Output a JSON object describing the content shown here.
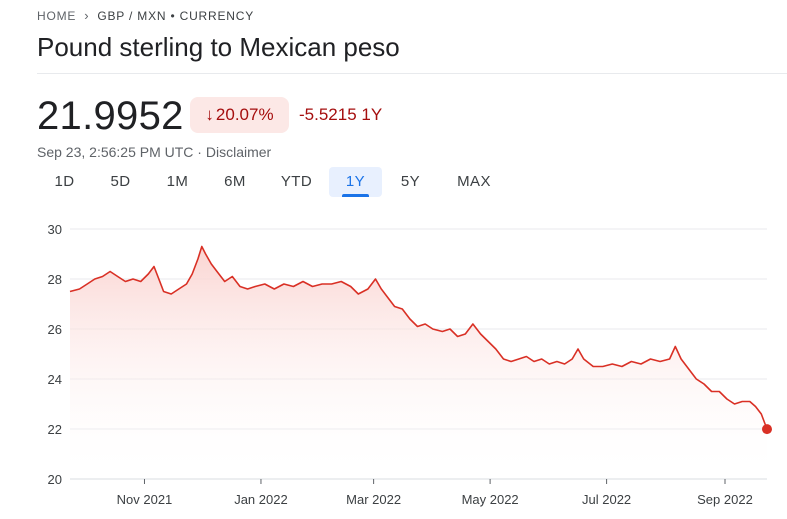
{
  "breadcrumb": {
    "home": "HOME",
    "current": "GBP / MXN • CURRENCY"
  },
  "title": "Pound sterling to Mexican peso",
  "quote": {
    "price": "21.9952",
    "change_percent": "20.07%",
    "change_abs": "-5.5215 1Y",
    "timestamp": "Sep 23, 2:56:25 PM UTC",
    "separator": " · ",
    "disclaimer": "Disclaimer"
  },
  "range_tabs": [
    {
      "label": "1D",
      "active": false
    },
    {
      "label": "5D",
      "active": false
    },
    {
      "label": "1M",
      "active": false
    },
    {
      "label": "6M",
      "active": false
    },
    {
      "label": "YTD",
      "active": false
    },
    {
      "label": "1Y",
      "active": true
    },
    {
      "label": "5Y",
      "active": false
    },
    {
      "label": "MAX",
      "active": false
    }
  ],
  "colors": {
    "line": "#d93025",
    "fill_top": "#fad2cf",
    "negative_badge_bg": "#fce8e6",
    "negative_text": "#a50e0e",
    "active_tab": "#1a73e8",
    "grid": "#e8eaed"
  },
  "icons": {
    "breadcrumb_separator": "chevron-right-icon",
    "change_arrow": "arrow-down-icon"
  },
  "chart_data": {
    "type": "area",
    "title": "",
    "xlabel": "",
    "ylabel": "",
    "ylim": [
      20,
      30
    ],
    "yticks": [
      20,
      22,
      24,
      26,
      28,
      30
    ],
    "xticks": [
      "Nov 2021",
      "Jan 2022",
      "Mar 2022",
      "May 2022",
      "Jul 2022",
      "Sep 2022"
    ],
    "xtick_dates": [
      "2021-11-01",
      "2022-01-01",
      "2022-03-01",
      "2022-05-01",
      "2022-07-01",
      "2022-09-01"
    ],
    "grid": true,
    "x_range": [
      "2021-09-23",
      "2022-09-23"
    ],
    "series": [
      {
        "points": [
          [
            "2021-09-23",
            27.5
          ],
          [
            "2021-09-28",
            27.6
          ],
          [
            "2021-10-02",
            27.8
          ],
          [
            "2021-10-06",
            28.0
          ],
          [
            "2021-10-10",
            28.1
          ],
          [
            "2021-10-14",
            28.3
          ],
          [
            "2021-10-18",
            28.1
          ],
          [
            "2021-10-22",
            27.9
          ],
          [
            "2021-10-26",
            28.0
          ],
          [
            "2021-10-30",
            27.9
          ],
          [
            "2021-11-03",
            28.2
          ],
          [
            "2021-11-06",
            28.5
          ],
          [
            "2021-11-09",
            27.9
          ],
          [
            "2021-11-11",
            27.5
          ],
          [
            "2021-11-15",
            27.4
          ],
          [
            "2021-11-19",
            27.6
          ],
          [
            "2021-11-23",
            27.8
          ],
          [
            "2021-11-26",
            28.2
          ],
          [
            "2021-11-29",
            28.8
          ],
          [
            "2021-12-01",
            29.3
          ],
          [
            "2021-12-03",
            29.0
          ],
          [
            "2021-12-06",
            28.6
          ],
          [
            "2021-12-09",
            28.3
          ],
          [
            "2021-12-13",
            27.9
          ],
          [
            "2021-12-17",
            28.1
          ],
          [
            "2021-12-21",
            27.7
          ],
          [
            "2021-12-25",
            27.6
          ],
          [
            "2021-12-29",
            27.7
          ],
          [
            "2022-01-03",
            27.8
          ],
          [
            "2022-01-08",
            27.6
          ],
          [
            "2022-01-13",
            27.8
          ],
          [
            "2022-01-18",
            27.7
          ],
          [
            "2022-01-23",
            27.9
          ],
          [
            "2022-01-28",
            27.7
          ],
          [
            "2022-02-02",
            27.8
          ],
          [
            "2022-02-07",
            27.8
          ],
          [
            "2022-02-12",
            27.9
          ],
          [
            "2022-02-17",
            27.7
          ],
          [
            "2022-02-21",
            27.4
          ],
          [
            "2022-02-26",
            27.6
          ],
          [
            "2022-03-02",
            28.0
          ],
          [
            "2022-03-05",
            27.6
          ],
          [
            "2022-03-08",
            27.3
          ],
          [
            "2022-03-12",
            26.9
          ],
          [
            "2022-03-16",
            26.8
          ],
          [
            "2022-03-20",
            26.4
          ],
          [
            "2022-03-24",
            26.1
          ],
          [
            "2022-03-28",
            26.2
          ],
          [
            "2022-04-01",
            26.0
          ],
          [
            "2022-04-06",
            25.9
          ],
          [
            "2022-04-10",
            26.0
          ],
          [
            "2022-04-14",
            25.7
          ],
          [
            "2022-04-18",
            25.8
          ],
          [
            "2022-04-22",
            26.2
          ],
          [
            "2022-04-26",
            25.8
          ],
          [
            "2022-04-30",
            25.5
          ],
          [
            "2022-05-04",
            25.2
          ],
          [
            "2022-05-08",
            24.8
          ],
          [
            "2022-05-12",
            24.7
          ],
          [
            "2022-05-16",
            24.8
          ],
          [
            "2022-05-20",
            24.9
          ],
          [
            "2022-05-24",
            24.7
          ],
          [
            "2022-05-28",
            24.8
          ],
          [
            "2022-06-01",
            24.6
          ],
          [
            "2022-06-05",
            24.7
          ],
          [
            "2022-06-09",
            24.6
          ],
          [
            "2022-06-13",
            24.8
          ],
          [
            "2022-06-16",
            25.2
          ],
          [
            "2022-06-19",
            24.8
          ],
          [
            "2022-06-24",
            24.5
          ],
          [
            "2022-06-29",
            24.5
          ],
          [
            "2022-07-04",
            24.6
          ],
          [
            "2022-07-09",
            24.5
          ],
          [
            "2022-07-14",
            24.7
          ],
          [
            "2022-07-19",
            24.6
          ],
          [
            "2022-07-24",
            24.8
          ],
          [
            "2022-07-29",
            24.7
          ],
          [
            "2022-08-03",
            24.8
          ],
          [
            "2022-08-06",
            25.3
          ],
          [
            "2022-08-09",
            24.8
          ],
          [
            "2022-08-13",
            24.4
          ],
          [
            "2022-08-17",
            24.0
          ],
          [
            "2022-08-21",
            23.8
          ],
          [
            "2022-08-25",
            23.5
          ],
          [
            "2022-08-29",
            23.5
          ],
          [
            "2022-09-02",
            23.2
          ],
          [
            "2022-09-06",
            23.0
          ],
          [
            "2022-09-10",
            23.1
          ],
          [
            "2022-09-14",
            23.1
          ],
          [
            "2022-09-17",
            22.9
          ],
          [
            "2022-09-20",
            22.6
          ],
          [
            "2022-09-23",
            21.9952
          ]
        ]
      }
    ]
  }
}
